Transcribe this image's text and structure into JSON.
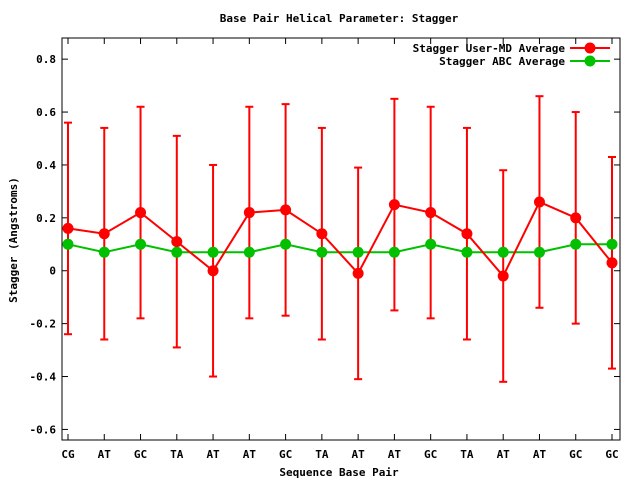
{
  "chart_data": {
    "type": "line",
    "title": "Base Pair Helical Parameter: Stagger",
    "xlabel": "Sequence Base Pair",
    "ylabel": "Stagger (Angstroms)",
    "ylim": [
      -0.64,
      0.88
    ],
    "yticks": [
      0.8,
      0.6,
      0.4,
      0.2,
      0,
      -0.2,
      -0.4,
      -0.6
    ],
    "ytick_labels": [
      "0.8",
      "0.6",
      "0.4",
      "0.2",
      "0",
      "-0.2",
      "-0.4",
      "-0.6"
    ],
    "categories": [
      "CG",
      "AT",
      "GC",
      "TA",
      "AT",
      "AT",
      "GC",
      "TA",
      "AT",
      "AT",
      "GC",
      "TA",
      "AT",
      "AT",
      "GC",
      "GC"
    ],
    "legend_position": "top-right",
    "grid": false,
    "series": [
      {
        "name": "Stagger User-MD Average",
        "color": "#ff0000",
        "values": [
          0.16,
          0.14,
          0.22,
          0.11,
          0.0,
          0.22,
          0.23,
          0.14,
          -0.01,
          0.25,
          0.22,
          0.14,
          -0.02,
          0.26,
          0.2,
          0.03
        ],
        "error": [
          0.4,
          0.4,
          0.4,
          0.4,
          0.4,
          0.4,
          0.4,
          0.4,
          0.4,
          0.4,
          0.4,
          0.4,
          0.4,
          0.4,
          0.4,
          0.4
        ]
      },
      {
        "name": "Stagger ABC Average",
        "color": "#00c000",
        "values": [
          0.1,
          0.07,
          0.1,
          0.07,
          0.07,
          0.07,
          0.1,
          0.07,
          0.07,
          0.07,
          0.1,
          0.07,
          0.07,
          0.07,
          0.1,
          0.1
        ]
      }
    ]
  }
}
